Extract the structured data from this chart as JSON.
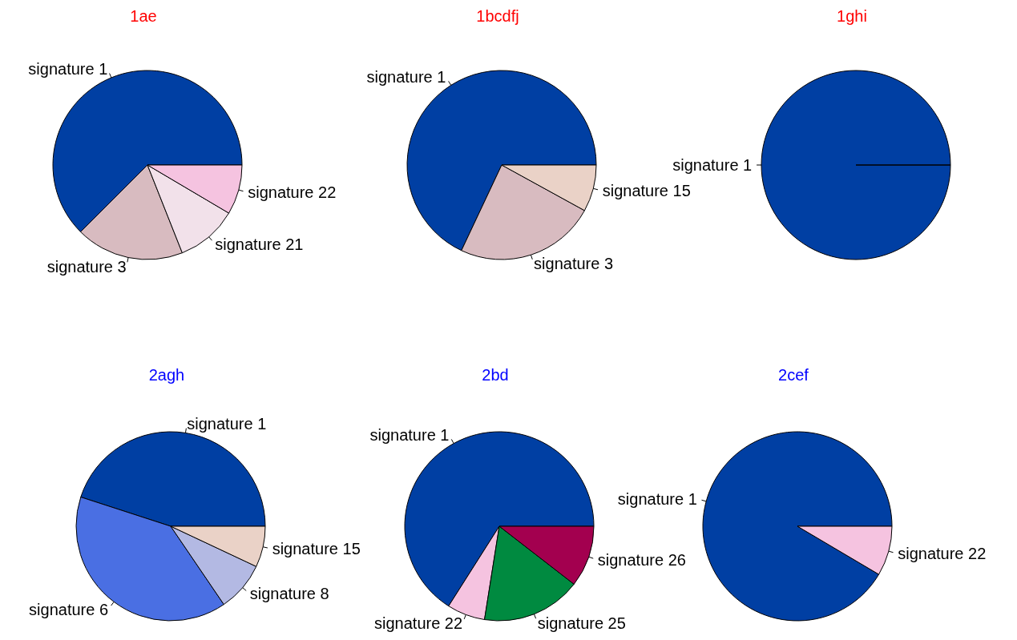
{
  "chart_data": [
    {
      "type": "pie",
      "title": "1ae",
      "categories": [
        "signature 1",
        "signature 3",
        "signature 21",
        "signature 22"
      ],
      "values": [
        62.5,
        18.5,
        10.5,
        8.5
      ],
      "colors": [
        "#003fa3",
        "#d8bbc0",
        "#f2e1ea",
        "#f5c3e0"
      ]
    },
    {
      "type": "pie",
      "title": "1bcdfj",
      "categories": [
        "signature 1",
        "signature 3",
        "signature 15"
      ],
      "values": [
        68,
        24,
        8
      ],
      "colors": [
        "#003fa3",
        "#d8bbc0",
        "#ead2c7"
      ]
    },
    {
      "type": "pie",
      "title": "1ghi",
      "categories": [
        "signature 1"
      ],
      "values": [
        100
      ],
      "colors": [
        "#003fa3"
      ]
    },
    {
      "type": "pie",
      "title": "2agh",
      "categories": [
        "signature 1",
        "signature 6",
        "signature 8",
        "signature 15"
      ],
      "values": [
        45,
        39.5,
        8.5,
        7
      ],
      "colors": [
        "#003fa3",
        "#4a6fe3",
        "#b3b9e3",
        "#ead2c7"
      ]
    },
    {
      "type": "pie",
      "title": "2bd",
      "categories": [
        "signature 1",
        "signature 22",
        "signature 25",
        "signature 26"
      ],
      "values": [
        66,
        6.5,
        17,
        10.5
      ],
      "colors": [
        "#003fa3",
        "#f5c3e0",
        "#008a40",
        "#a3004f"
      ]
    },
    {
      "type": "pie",
      "title": "2cef",
      "categories": [
        "signature 1",
        "signature 22"
      ],
      "values": [
        91.5,
        8.5
      ],
      "colors": [
        "#003fa3",
        "#f5c3e0"
      ]
    }
  ]
}
